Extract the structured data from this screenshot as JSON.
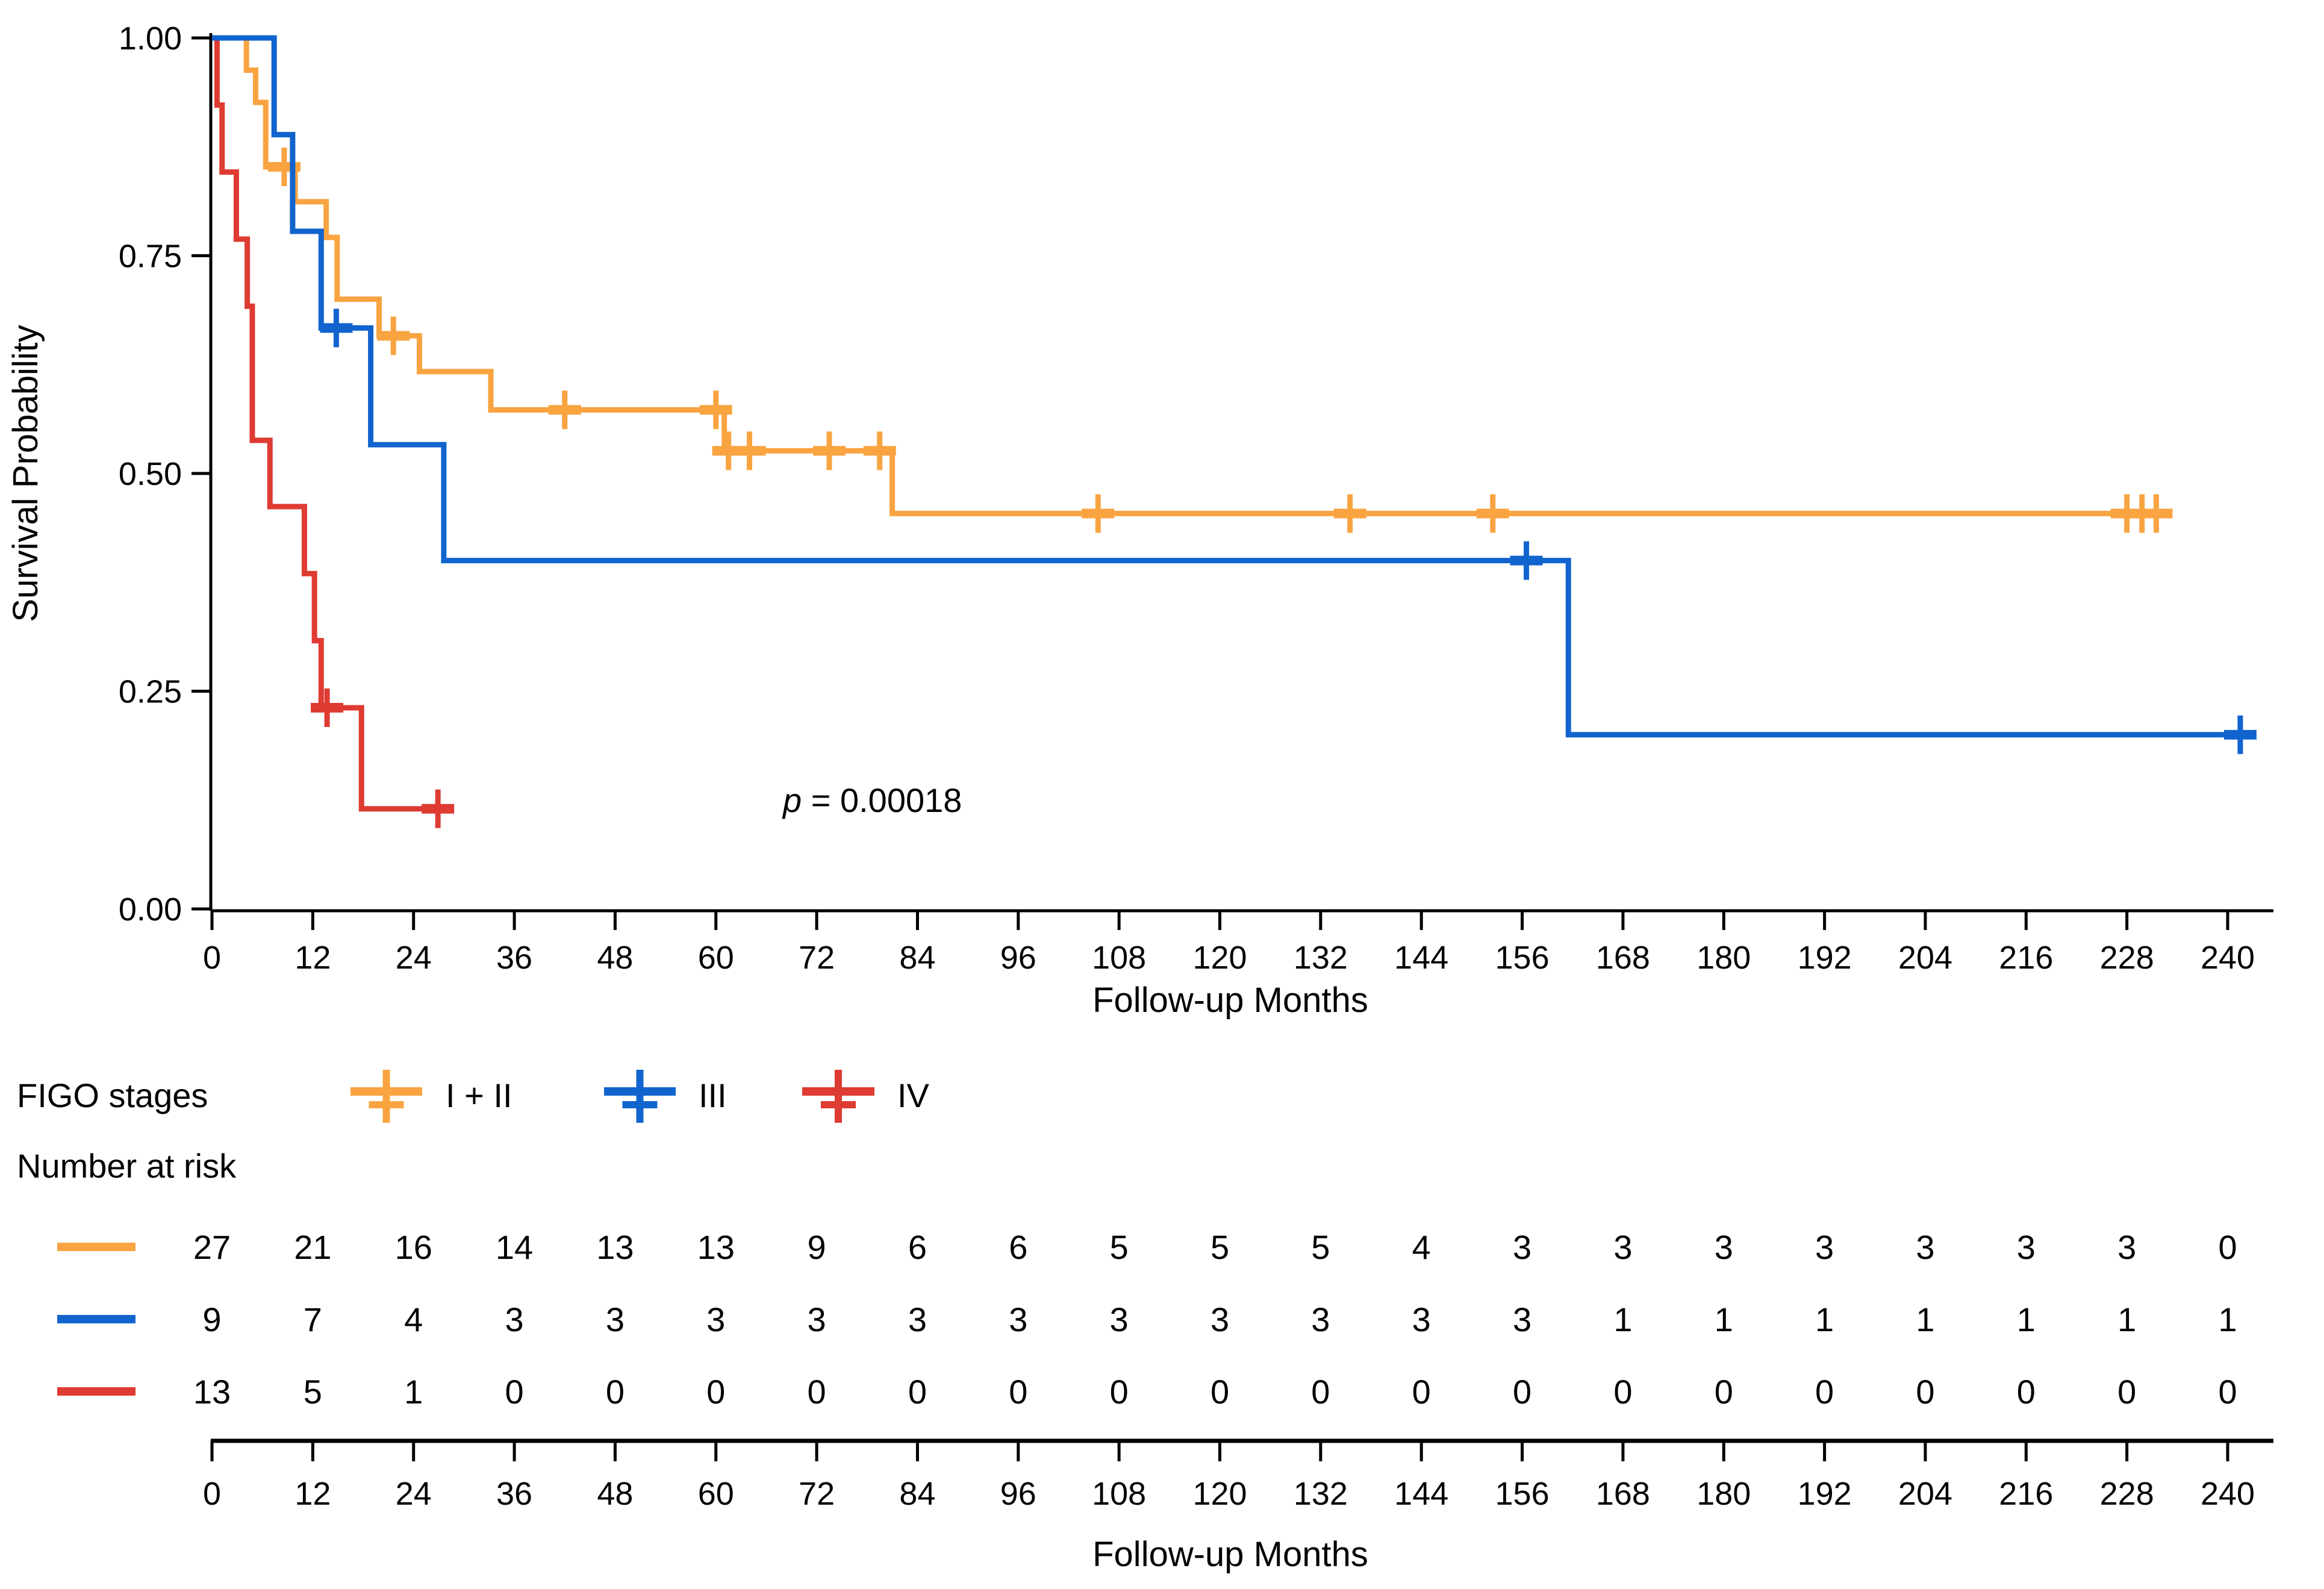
{
  "colors": {
    "stage12": "#F9A441",
    "stage3": "#1164CE",
    "stage4": "#DE3B32",
    "axis": "#000000",
    "text": "#000000",
    "background": "#FFFFFF"
  },
  "p_value": {
    "prefix": "p",
    "rest": " = 0.00018"
  },
  "y_axis": {
    "label": "Survival Probability",
    "tick_labels": [
      "1.00",
      "0.75",
      "0.50",
      "0.25",
      "0.00"
    ],
    "tick_values": [
      1.0,
      0.75,
      0.5,
      0.25,
      0.0
    ]
  },
  "x_axis": {
    "label": "Follow-up Months",
    "tick_values": [
      0,
      12,
      24,
      36,
      48,
      60,
      72,
      84,
      96,
      108,
      120,
      132,
      144,
      156,
      168,
      180,
      192,
      204,
      216,
      228,
      240
    ]
  },
  "legend": {
    "title": "FIGO stages",
    "entries": [
      {
        "label": "I + II",
        "color_key": "stage12"
      },
      {
        "label": "III",
        "color_key": "stage3"
      },
      {
        "label": "IV",
        "color_key": "stage4"
      }
    ]
  },
  "risk_table": {
    "title": "Number at risk",
    "x_label": "Follow-up Months",
    "times": [
      0,
      12,
      24,
      36,
      48,
      60,
      72,
      84,
      96,
      108,
      120,
      132,
      144,
      156,
      168,
      180,
      192,
      204,
      216,
      228,
      240
    ],
    "rows": [
      {
        "group": "I + II",
        "color_key": "stage12",
        "values": [
          27,
          21,
          16,
          14,
          13,
          13,
          9,
          6,
          6,
          5,
          5,
          5,
          4,
          3,
          3,
          3,
          3,
          3,
          3,
          3,
          0
        ]
      },
      {
        "group": "III",
        "color_key": "stage3",
        "values": [
          9,
          7,
          4,
          3,
          3,
          3,
          3,
          3,
          3,
          3,
          3,
          3,
          3,
          3,
          1,
          1,
          1,
          1,
          1,
          1,
          1
        ]
      },
      {
        "group": "IV",
        "color_key": "stage4",
        "values": [
          13,
          5,
          1,
          0,
          0,
          0,
          0,
          0,
          0,
          0,
          0,
          0,
          0,
          0,
          0,
          0,
          0,
          0,
          0,
          0,
          0
        ]
      }
    ]
  },
  "chart_data": {
    "type": "line",
    "subtype": "kaplan-meier-step",
    "title": "",
    "xlabel": "Follow-up Months",
    "ylabel": "Survival Probability",
    "xlim": [
      0,
      248
    ],
    "ylim": [
      0.0,
      1.0
    ],
    "grid": false,
    "legend_position": "bottom",
    "p_value_text": "p = 0.00018",
    "series": [
      {
        "name": "I + II",
        "color_key": "stage12",
        "n_start": 27,
        "steps": [
          [
            0,
            1.0
          ],
          [
            4.1,
            0.963
          ],
          [
            5.2,
            0.926
          ],
          [
            6.4,
            0.852
          ],
          [
            9.9,
            0.812
          ],
          [
            13.6,
            0.771
          ],
          [
            14.9,
            0.7
          ],
          [
            19.9,
            0.658
          ],
          [
            24.7,
            0.617
          ],
          [
            33.2,
            0.573
          ],
          [
            61.0,
            0.526
          ],
          [
            81.0,
            0.454
          ]
        ],
        "end_time": 232.5,
        "censors": [
          [
            8.6,
            0.852
          ],
          [
            21.6,
            0.658
          ],
          [
            42.0,
            0.573
          ],
          [
            60.0,
            0.573
          ],
          [
            61.5,
            0.526
          ],
          [
            64.0,
            0.526
          ],
          [
            73.5,
            0.526
          ],
          [
            79.5,
            0.526
          ],
          [
            105.5,
            0.454
          ],
          [
            135.5,
            0.454
          ],
          [
            152.5,
            0.454
          ],
          [
            228.0,
            0.454
          ],
          [
            229.8,
            0.454
          ],
          [
            231.5,
            0.454
          ]
        ]
      },
      {
        "name": "III",
        "color_key": "stage3",
        "n_start": 9,
        "steps": [
          [
            0,
            1.0
          ],
          [
            7.4,
            0.889
          ],
          [
            9.6,
            0.778
          ],
          [
            13.0,
            0.667
          ],
          [
            18.9,
            0.533
          ],
          [
            27.6,
            0.4
          ],
          [
            161.5,
            0.2
          ]
        ],
        "end_time": 241.5,
        "censors": [
          [
            14.8,
            0.667
          ],
          [
            156.5,
            0.4
          ],
          [
            241.5,
            0.2
          ]
        ]
      },
      {
        "name": "IV",
        "color_key": "stage4",
        "n_start": 13,
        "steps": [
          [
            0,
            1.0
          ],
          [
            0.6,
            0.923
          ],
          [
            1.2,
            0.846
          ],
          [
            2.9,
            0.769
          ],
          [
            4.2,
            0.692
          ],
          [
            4.8,
            0.538
          ],
          [
            6.9,
            0.462
          ],
          [
            11.0,
            0.385
          ],
          [
            12.2,
            0.308
          ],
          [
            13.0,
            0.231
          ],
          [
            17.8,
            0.115
          ]
        ],
        "end_time": 28.2,
        "censors": [
          [
            13.7,
            0.231
          ],
          [
            26.9,
            0.115
          ]
        ]
      }
    ]
  }
}
